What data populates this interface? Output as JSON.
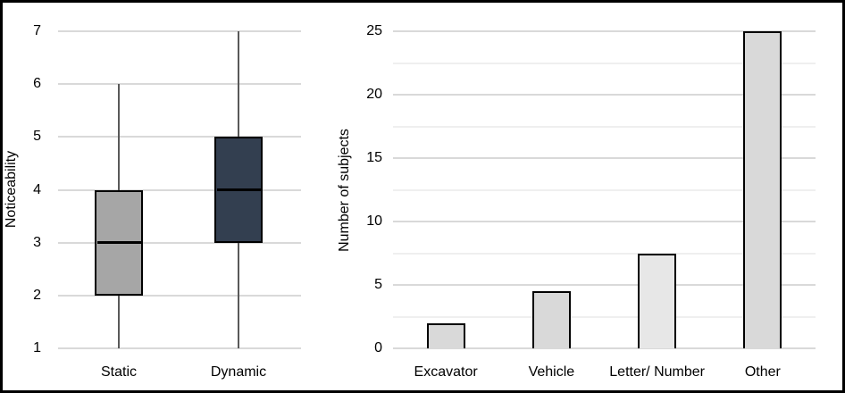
{
  "styles": {
    "background": "#ffffff",
    "frame_border": "#000000",
    "grid_major": "#d9d9d9",
    "grid_minor": "#efefef",
    "whisker_color": "#595959",
    "box_border": "#000000",
    "median_color": "#000000",
    "text_color": "#000000"
  },
  "chart_data": [
    {
      "type": "boxplot",
      "title": "",
      "ylabel": "Noticeability",
      "xlabel": "",
      "ylim": [
        1,
        7
      ],
      "yticks": [
        1,
        2,
        3,
        4,
        5,
        6,
        7
      ],
      "grid": "horizontal, major only",
      "legend": "none",
      "categories": [
        "Static",
        "Dynamic"
      ],
      "series": [
        {
          "name": "Static",
          "whisker_low": 1,
          "q1": 2,
          "median": 3,
          "q3": 4,
          "whisker_high": 6,
          "fill": "#a6a6a6"
        },
        {
          "name": "Dynamic",
          "whisker_low": 1,
          "q1": 3,
          "median": 4,
          "q3": 5,
          "whisker_high": 7,
          "fill": "#333f50"
        }
      ]
    },
    {
      "type": "bar",
      "title": "",
      "ylabel": "Number of subjects",
      "xlabel": "",
      "ylim": [
        0,
        25
      ],
      "yticks": [
        0,
        5,
        10,
        15,
        20,
        25
      ],
      "minor_tick_step": 2.5,
      "grid": "horizontal, major and minor",
      "legend": "none",
      "categories": [
        "Excavator",
        "Vehicle",
        "Letter/ Number",
        "Other"
      ],
      "values": [
        2,
        4.5,
        7.5,
        25
      ],
      "bar_fills": [
        "#d9d9d9",
        "#d9d9d9",
        "#e7e7e7",
        "#d9d9d9"
      ],
      "bar_border": "#000000"
    }
  ]
}
